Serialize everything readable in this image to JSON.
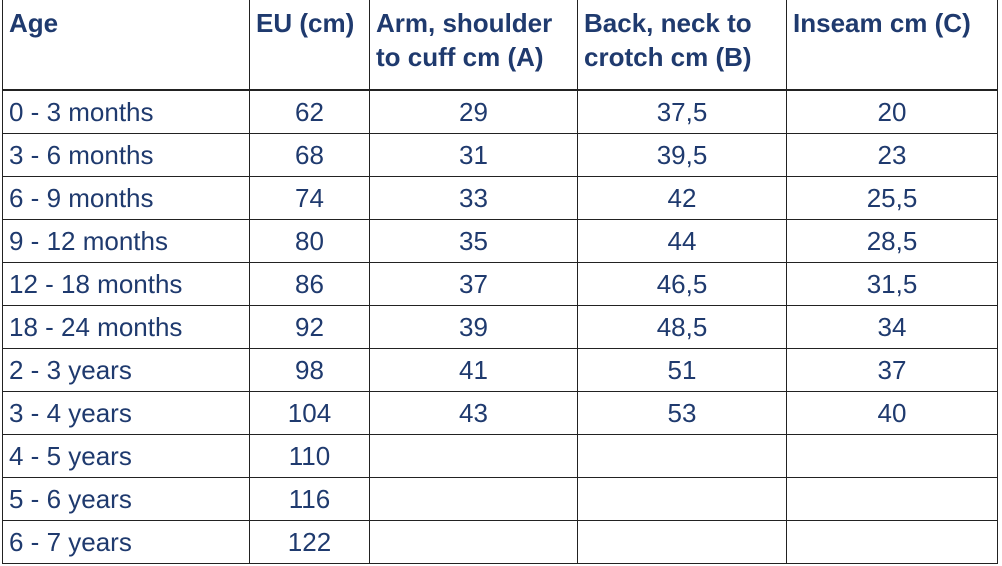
{
  "table": {
    "header": [
      [
        "Age"
      ],
      [
        "EU (cm)"
      ],
      [
        "Arm, shoulder",
        "to cuff cm (A)"
      ],
      [
        "Back, neck to",
        "crotch cm (B)"
      ],
      [
        "Inseam cm (C)"
      ]
    ],
    "rows": [
      [
        "0 - 3 months",
        "62",
        "29",
        "37,5",
        "20"
      ],
      [
        "3 - 6 months",
        "68",
        "31",
        "39,5",
        "23"
      ],
      [
        "6 - 9 months",
        "74",
        "33",
        "42",
        "25,5"
      ],
      [
        "9 - 12 months",
        "80",
        "35",
        "44",
        "28,5"
      ],
      [
        "12 - 18 months",
        "86",
        "37",
        "46,5",
        "31,5"
      ],
      [
        "18 - 24 months",
        "92",
        "39",
        "48,5",
        "34"
      ],
      [
        "2 - 3 years",
        "98",
        "41",
        "51",
        "37"
      ],
      [
        "3 - 4 years",
        "104",
        "43",
        "53",
        "40"
      ],
      [
        "4 - 5 years",
        "110"
      ],
      [
        "5 - 6 years",
        "116"
      ],
      [
        "6 - 7 years",
        "122"
      ]
    ]
  }
}
